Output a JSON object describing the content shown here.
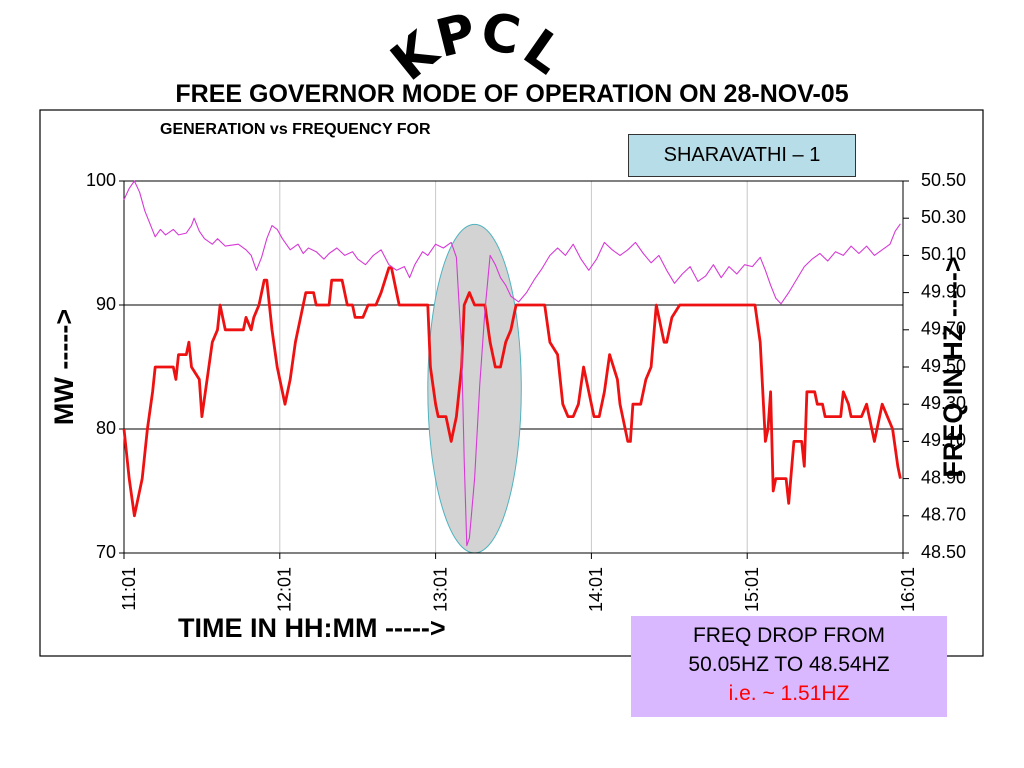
{
  "header": {
    "org": "KPCL",
    "title": "FREE GOVERNOR MODE OF OPERATION ON 28-NOV-05"
  },
  "annotations": {
    "unit_label": "SHARAVATHI – 1",
    "drop_line1": "FREQ DROP FROM",
    "drop_line2": "50.05HZ TO 48.54HZ",
    "drop_line3": "i.e. ~ 1.51HZ"
  },
  "colors": {
    "mw_series": "#ee1111",
    "freq_series": "#d63ad6",
    "highlight_fill": "#d3d3d3",
    "highlight_stroke": "#4fb3bf",
    "unit_box": "#b7dde8",
    "drop_box": "#d9b8ff",
    "drop_highlight_text": "#ff0000"
  },
  "chart_data": {
    "type": "line",
    "title": "GENERATION vs FREQUENCY FOR",
    "xlabel": "TIME IN HH:MM ----->",
    "ylabel": "MW ----->",
    "y2label": "FREQ IN HZ ----->",
    "x_ticks": [
      "11:01",
      "12:01",
      "13:01",
      "14:01",
      "15:01",
      "16:01"
    ],
    "x_range": [
      "11:01",
      "16:01"
    ],
    "ylim": [
      70,
      100
    ],
    "y_ticks": [
      "100",
      "90",
      "80",
      "70"
    ],
    "y2lim": [
      48.5,
      50.5
    ],
    "y2_ticks": [
      "50.50",
      "50.30",
      "50.10",
      "49.90",
      "49.70",
      "49.50",
      "49.30",
      "49.10",
      "48.90",
      "48.70",
      "48.50"
    ],
    "grid": "horizontal major at 80 and 90 MW, vertical at each hour",
    "highlight": {
      "shape": "ellipse",
      "x_from": "12:58",
      "x_to": "13:34",
      "y_from": 70,
      "y_to": 96.5
    },
    "series": [
      {
        "name": "MW",
        "axis": "left",
        "points": [
          [
            "11:01",
            80
          ],
          [
            "11:03",
            76
          ],
          [
            "11:05",
            73
          ],
          [
            "11:08",
            76
          ],
          [
            "11:10",
            80
          ],
          [
            "11:12",
            83
          ],
          [
            "11:13",
            85
          ],
          [
            "11:20",
            85
          ],
          [
            "11:21",
            84
          ],
          [
            "11:22",
            86
          ],
          [
            "11:25",
            86
          ],
          [
            "11:26",
            87
          ],
          [
            "11:27",
            85
          ],
          [
            "11:30",
            84
          ],
          [
            "11:31",
            81
          ],
          [
            "11:33",
            84
          ],
          [
            "11:35",
            87
          ],
          [
            "11:37",
            88
          ],
          [
            "11:38",
            90
          ],
          [
            "11:40",
            88
          ],
          [
            "11:47",
            88
          ],
          [
            "11:48",
            89
          ],
          [
            "11:50",
            88
          ],
          [
            "11:51",
            89
          ],
          [
            "11:53",
            90
          ],
          [
            "11:55",
            92
          ],
          [
            "11:56",
            92
          ],
          [
            "11:58",
            88
          ],
          [
            "12:00",
            85
          ],
          [
            "12:03",
            82
          ],
          [
            "12:05",
            84
          ],
          [
            "12:07",
            87
          ],
          [
            "12:09",
            89
          ],
          [
            "12:11",
            91
          ],
          [
            "12:14",
            91
          ],
          [
            "12:15",
            90
          ],
          [
            "12:20",
            90
          ],
          [
            "12:21",
            92
          ],
          [
            "12:25",
            92
          ],
          [
            "12:27",
            90
          ],
          [
            "12:29",
            90
          ],
          [
            "12:30",
            89
          ],
          [
            "12:33",
            89
          ],
          [
            "12:35",
            90
          ],
          [
            "12:38",
            90
          ],
          [
            "12:40",
            91
          ],
          [
            "12:43",
            93
          ],
          [
            "12:44",
            93
          ],
          [
            "12:46",
            91
          ],
          [
            "12:47",
            90
          ],
          [
            "12:58",
            90
          ],
          [
            "12:59",
            85
          ],
          [
            "13:01",
            82
          ],
          [
            "13:02",
            81
          ],
          [
            "13:05",
            81
          ],
          [
            "13:07",
            79
          ],
          [
            "13:09",
            81
          ],
          [
            "13:11",
            85
          ],
          [
            "13:12",
            90
          ],
          [
            "13:14",
            91
          ],
          [
            "13:16",
            90
          ],
          [
            "13:20",
            90
          ],
          [
            "13:22",
            87
          ],
          [
            "13:24",
            85
          ],
          [
            "13:26",
            85
          ],
          [
            "13:28",
            87
          ],
          [
            "13:30",
            88
          ],
          [
            "13:32",
            90
          ],
          [
            "13:43",
            90
          ],
          [
            "13:45",
            87
          ],
          [
            "13:48",
            86
          ],
          [
            "13:50",
            82
          ],
          [
            "13:52",
            81
          ],
          [
            "13:54",
            81
          ],
          [
            "13:56",
            82
          ],
          [
            "13:58",
            85
          ],
          [
            "14:00",
            83
          ],
          [
            "14:02",
            81
          ],
          [
            "14:04",
            81
          ],
          [
            "14:06",
            83
          ],
          [
            "14:08",
            86
          ],
          [
            "14:11",
            84
          ],
          [
            "14:12",
            82
          ],
          [
            "14:14",
            80
          ],
          [
            "14:15",
            79
          ],
          [
            "14:16",
            79
          ],
          [
            "14:17",
            82
          ],
          [
            "14:20",
            82
          ],
          [
            "14:22",
            84
          ],
          [
            "14:24",
            85
          ],
          [
            "14:26",
            90
          ],
          [
            "14:29",
            87
          ],
          [
            "14:30",
            87
          ],
          [
            "14:32",
            89
          ],
          [
            "14:35",
            90
          ],
          [
            "14:49",
            90
          ],
          [
            "15:04",
            90
          ],
          [
            "15:06",
            87
          ],
          [
            "15:08",
            79
          ],
          [
            "15:09",
            80
          ],
          [
            "15:10",
            83
          ],
          [
            "15:11",
            75
          ],
          [
            "15:12",
            76
          ],
          [
            "15:16",
            76
          ],
          [
            "15:17",
            74
          ],
          [
            "15:19",
            79
          ],
          [
            "15:22",
            79
          ],
          [
            "15:23",
            77
          ],
          [
            "15:24",
            83
          ],
          [
            "15:27",
            83
          ],
          [
            "15:28",
            82
          ],
          [
            "15:30",
            82
          ],
          [
            "15:31",
            81
          ],
          [
            "15:37",
            81
          ],
          [
            "15:38",
            83
          ],
          [
            "15:40",
            82
          ],
          [
            "15:41",
            81
          ],
          [
            "15:45",
            81
          ],
          [
            "15:47",
            82
          ],
          [
            "15:48",
            81
          ],
          [
            "15:49",
            80
          ],
          [
            "15:50",
            79
          ],
          [
            "15:53",
            82
          ],
          [
            "15:55",
            81
          ],
          [
            "15:57",
            80
          ],
          [
            "15:59",
            77
          ],
          [
            "16:00",
            76
          ]
        ]
      },
      {
        "name": "FREQ",
        "axis": "right",
        "points": [
          [
            "11:01",
            50.4
          ],
          [
            "11:03",
            50.46
          ],
          [
            "11:05",
            50.5
          ],
          [
            "11:07",
            50.44
          ],
          [
            "11:09",
            50.34
          ],
          [
            "11:11",
            50.27
          ],
          [
            "11:13",
            50.2
          ],
          [
            "11:15",
            50.24
          ],
          [
            "11:17",
            50.21
          ],
          [
            "11:20",
            50.24
          ],
          [
            "11:22",
            50.21
          ],
          [
            "11:25",
            50.22
          ],
          [
            "11:27",
            50.26
          ],
          [
            "11:28",
            50.3
          ],
          [
            "11:30",
            50.23
          ],
          [
            "11:32",
            50.19
          ],
          [
            "11:35",
            50.16
          ],
          [
            "11:37",
            50.19
          ],
          [
            "11:40",
            50.15
          ],
          [
            "11:45",
            50.16
          ],
          [
            "11:48",
            50.13
          ],
          [
            "11:50",
            50.1
          ],
          [
            "11:52",
            50.02
          ],
          [
            "11:54",
            50.09
          ],
          [
            "11:56",
            50.19
          ],
          [
            "11:58",
            50.26
          ],
          [
            "12:00",
            50.24
          ],
          [
            "12:02",
            50.19
          ],
          [
            "12:05",
            50.13
          ],
          [
            "12:08",
            50.16
          ],
          [
            "12:10",
            50.11
          ],
          [
            "12:12",
            50.14
          ],
          [
            "12:15",
            50.12
          ],
          [
            "12:18",
            50.08
          ],
          [
            "12:20",
            50.11
          ],
          [
            "12:23",
            50.14
          ],
          [
            "12:26",
            50.1
          ],
          [
            "12:29",
            50.12
          ],
          [
            "12:31",
            50.08
          ],
          [
            "12:34",
            50.05
          ],
          [
            "12:37",
            50.1
          ],
          [
            "12:40",
            50.13
          ],
          [
            "12:43",
            50.05
          ],
          [
            "12:46",
            50.02
          ],
          [
            "12:49",
            50.04
          ],
          [
            "12:51",
            49.98
          ],
          [
            "12:53",
            50.05
          ],
          [
            "12:56",
            50.12
          ],
          [
            "12:58",
            50.1
          ],
          [
            "13:01",
            50.16
          ],
          [
            "13:04",
            50.14
          ],
          [
            "13:07",
            50.17
          ],
          [
            "13:09",
            50.09
          ],
          [
            "13:11",
            49.6
          ],
          [
            "13:12",
            49.0
          ],
          [
            "13:13",
            48.54
          ],
          [
            "13:14",
            48.58
          ],
          [
            "13:16",
            48.9
          ],
          [
            "13:18",
            49.4
          ],
          [
            "13:20",
            49.8
          ],
          [
            "13:22",
            50.1
          ],
          [
            "13:24",
            50.05
          ],
          [
            "13:26",
            49.98
          ],
          [
            "13:28",
            49.94
          ],
          [
            "13:30",
            49.88
          ],
          [
            "13:33",
            49.85
          ],
          [
            "13:36",
            49.9
          ],
          [
            "13:39",
            49.97
          ],
          [
            "13:42",
            50.03
          ],
          [
            "13:45",
            50.1
          ],
          [
            "13:48",
            50.14
          ],
          [
            "13:51",
            50.1
          ],
          [
            "13:54",
            50.16
          ],
          [
            "13:57",
            50.08
          ],
          [
            "14:00",
            50.02
          ],
          [
            "14:03",
            50.08
          ],
          [
            "14:06",
            50.17
          ],
          [
            "14:09",
            50.13
          ],
          [
            "14:12",
            50.1
          ],
          [
            "14:15",
            50.13
          ],
          [
            "14:18",
            50.17
          ],
          [
            "14:21",
            50.11
          ],
          [
            "14:24",
            50.06
          ],
          [
            "14:27",
            50.1
          ],
          [
            "14:30",
            50.02
          ],
          [
            "14:33",
            49.95
          ],
          [
            "14:36",
            50.0
          ],
          [
            "14:39",
            50.04
          ],
          [
            "14:42",
            49.96
          ],
          [
            "14:45",
            49.99
          ],
          [
            "14:48",
            50.05
          ],
          [
            "14:51",
            49.98
          ],
          [
            "14:54",
            50.04
          ],
          [
            "14:57",
            50.0
          ],
          [
            "15:00",
            50.05
          ],
          [
            "15:03",
            50.04
          ],
          [
            "15:06",
            50.09
          ],
          [
            "15:08",
            50.02
          ],
          [
            "15:10",
            49.94
          ],
          [
            "15:12",
            49.87
          ],
          [
            "15:14",
            49.84
          ],
          [
            "15:17",
            49.9
          ],
          [
            "15:20",
            49.97
          ],
          [
            "15:23",
            50.04
          ],
          [
            "15:26",
            50.08
          ],
          [
            "15:29",
            50.11
          ],
          [
            "15:32",
            50.07
          ],
          [
            "15:35",
            50.12
          ],
          [
            "15:38",
            50.1
          ],
          [
            "15:41",
            50.15
          ],
          [
            "15:44",
            50.11
          ],
          [
            "15:47",
            50.15
          ],
          [
            "15:50",
            50.1
          ],
          [
            "15:53",
            50.13
          ],
          [
            "15:56",
            50.16
          ],
          [
            "15:58",
            50.23
          ],
          [
            "16:00",
            50.27
          ]
        ]
      }
    ]
  }
}
